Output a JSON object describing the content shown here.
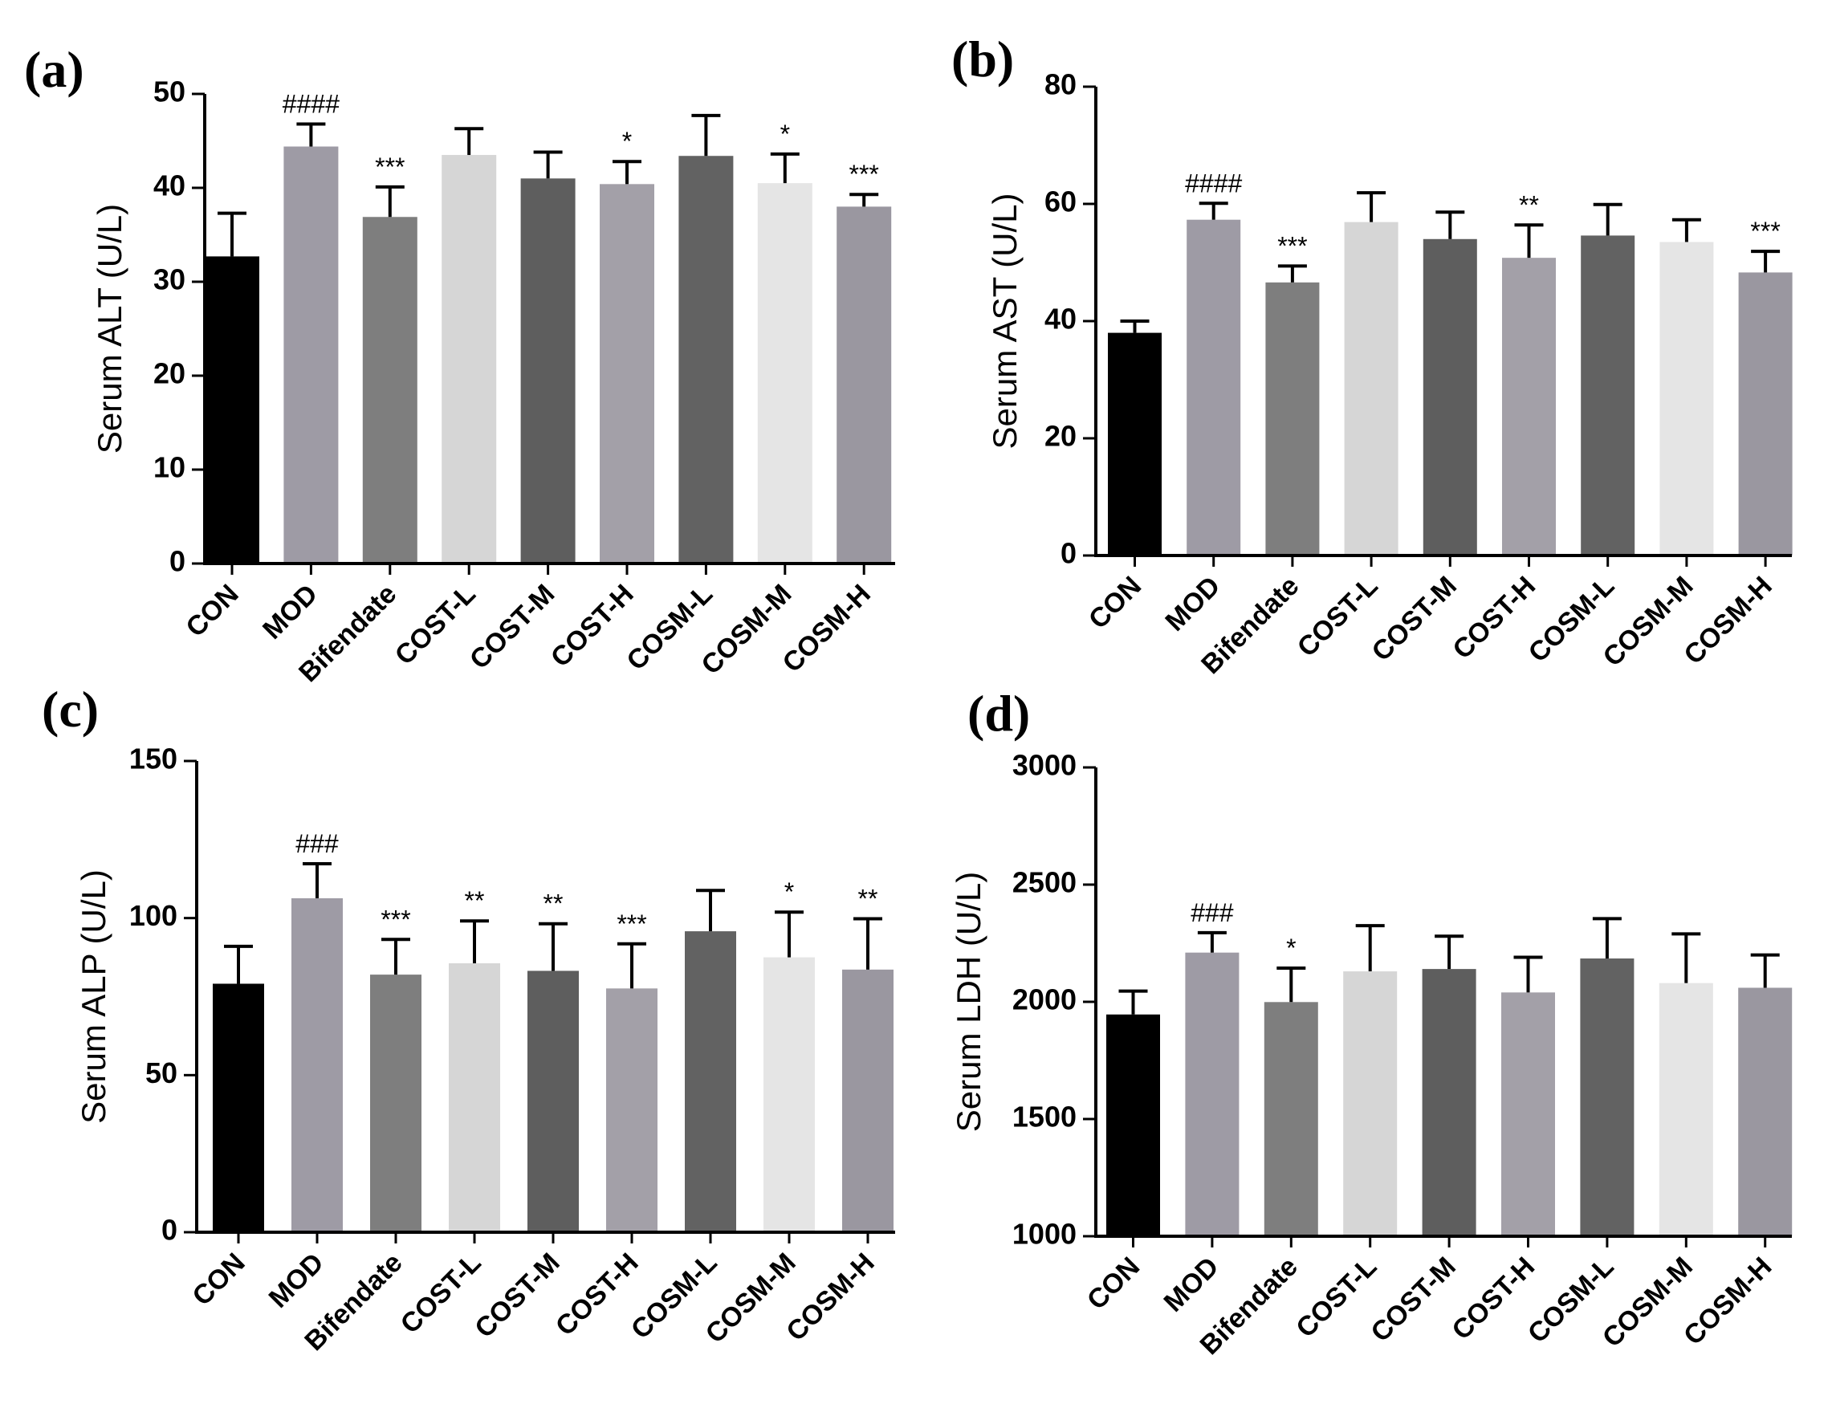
{
  "chart_data": [
    {
      "panel": "(a)",
      "type": "bar",
      "ylabel": "Serum ALT (U/L)",
      "ylim": [
        0,
        50
      ],
      "yticks": [
        "0",
        "10",
        "20",
        "30",
        "40",
        "50"
      ],
      "categories": [
        "CON",
        "MOD",
        "Bifendate",
        "COST-L",
        "COST-M",
        "COST-H",
        "COSM-L",
        "COSM-M",
        "COSM-H"
      ],
      "values": [
        32.7,
        44.4,
        36.9,
        43.5,
        41.0,
        40.4,
        43.4,
        40.5,
        38.0
      ],
      "errors": [
        4.6,
        2.4,
        3.2,
        2.8,
        2.8,
        2.4,
        4.3,
        3.1,
        1.3
      ],
      "annotations": [
        "",
        "####",
        "***",
        "",
        "",
        "*",
        "",
        "*",
        "***"
      ],
      "bar_colors": [
        "#000000",
        "#9e9ba5",
        "#7e7e7e",
        "#d6d6d6",
        "#5e5e5e",
        "#a3a0a8",
        "#626262",
        "#e5e5e5",
        "#9a97a0"
      ]
    },
    {
      "panel": "(b)",
      "type": "bar",
      "ylabel": "Serum AST (U/L)",
      "ylim": [
        0,
        80
      ],
      "yticks": [
        "0",
        "20",
        "40",
        "60",
        "80"
      ],
      "categories": [
        "CON",
        "MOD",
        "Bifendate",
        "COST-L",
        "COST-M",
        "COST-H",
        "COSM-L",
        "COSM-M",
        "COSM-H"
      ],
      "values": [
        38.0,
        57.3,
        46.6,
        56.9,
        54.0,
        50.8,
        54.6,
        53.5,
        48.3
      ],
      "errors": [
        2.0,
        2.8,
        2.8,
        5.0,
        4.6,
        5.6,
        5.3,
        3.8,
        3.6
      ],
      "annotations": [
        "",
        "####",
        "***",
        "",
        "",
        "**",
        "",
        "",
        "***"
      ],
      "bar_colors": [
        "#000000",
        "#9e9ba5",
        "#7e7e7e",
        "#d6d6d6",
        "#5e5e5e",
        "#a3a0a8",
        "#626262",
        "#e5e5e5",
        "#9a97a0"
      ]
    },
    {
      "panel": "(c)",
      "type": "bar",
      "ylabel": "Serum ALP (U/L)",
      "ylim": [
        0,
        150
      ],
      "yticks": [
        "0",
        "50",
        "100",
        "150"
      ],
      "categories": [
        "CON",
        "MOD",
        "Bifendate",
        "COST-L",
        "COST-M",
        "COST-H",
        "COSM-L",
        "COSM-M",
        "COSM-H"
      ],
      "values": [
        79.1,
        106.3,
        82.0,
        85.6,
        83.2,
        77.6,
        95.8,
        87.5,
        83.6
      ],
      "errors": [
        11.9,
        11.0,
        11.2,
        13.5,
        15.0,
        14.2,
        13.0,
        14.4,
        16.2
      ],
      "annotations": [
        "",
        "###",
        "***",
        "**",
        "**",
        "***",
        "",
        "*",
        "**"
      ],
      "bar_colors": [
        "#000000",
        "#9e9ba5",
        "#7e7e7e",
        "#d6d6d6",
        "#5e5e5e",
        "#a3a0a8",
        "#626262",
        "#e5e5e5",
        "#9a97a0"
      ]
    },
    {
      "panel": "(d)",
      "type": "bar",
      "ylabel": "Serum LDH (U/L)",
      "ylim": [
        1000,
        3000
      ],
      "yticks": [
        "1000",
        "1500",
        "2000",
        "2500",
        "3000"
      ],
      "categories": [
        "CON",
        "MOD",
        "Bifendate",
        "COST-L",
        "COST-M",
        "COST-H",
        "COSM-L",
        "COSM-M",
        "COSM-H"
      ],
      "values": [
        1946,
        2210,
        1999,
        2130,
        2140,
        2040,
        2185,
        2080,
        2060
      ],
      "errors": [
        100,
        85,
        145,
        195,
        140,
        150,
        170,
        210,
        140
      ],
      "annotations": [
        "",
        "###",
        "*",
        "",
        "",
        "",
        "",
        "",
        ""
      ],
      "bar_colors": [
        "#000000",
        "#9e9ba5",
        "#7e7e7e",
        "#d6d6d6",
        "#5e5e5e",
        "#a3a0a8",
        "#626262",
        "#e5e5e5",
        "#9a97a0"
      ]
    }
  ]
}
